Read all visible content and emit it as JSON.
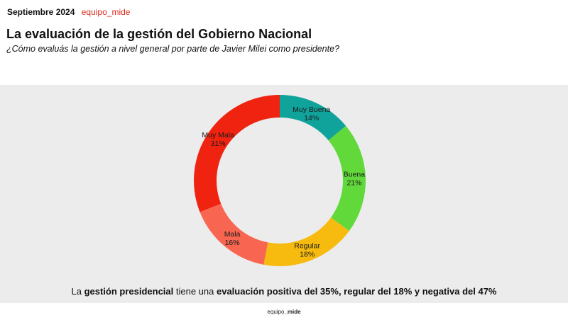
{
  "header": {
    "date": "Septiembre 2024",
    "brand": "equipo_mide",
    "title": "La evaluación de la gestión del Gobierno Nacional",
    "subtitle": "¿Cómo evaluás la gestión a nivel general por parte de Javier Milei como presidente?"
  },
  "chart_data": {
    "type": "pie",
    "donut": true,
    "categories": [
      "Muy Buena",
      "Buena",
      "Regular",
      "Mala",
      "Muy Mala"
    ],
    "values": [
      14,
      21,
      18,
      16,
      31
    ],
    "labels": [
      "14%",
      "21%",
      "18%",
      "16%",
      "31%"
    ],
    "colors": [
      "#10a39b",
      "#62d93a",
      "#f6bb0e",
      "#f86652",
      "#ef230f"
    ],
    "start": "top",
    "direction": "clockwise"
  },
  "caption": {
    "p1": "La ",
    "b1": "gestión presidencial",
    "p2": " tiene una ",
    "b2": "evaluación positiva del 35%, regular del 18% y negativa del 47%"
  },
  "footer": {
    "brand_a": "equipo",
    "brand_b": "_mide"
  }
}
